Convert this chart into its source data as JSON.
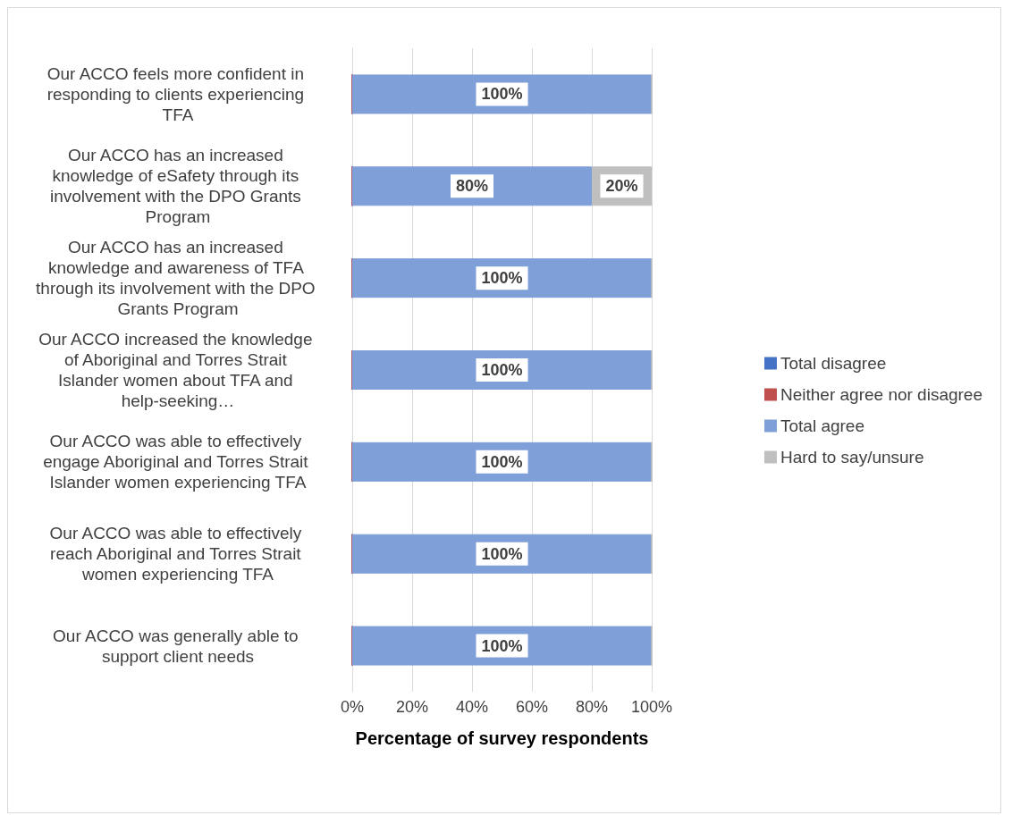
{
  "chart_data": {
    "type": "bar",
    "orientation": "horizontal",
    "stacked": true,
    "xlabel": "Percentage of survey respondents",
    "categories": [
      "Our ACCO feels more confident in responding to clients experiencing TFA",
      "Our ACCO has an increased knowledge of eSafety through its involvement with the DPO Grants Program",
      "Our ACCO has an increased knowledge and awareness of TFA through its involvement with the DPO Grants Program",
      "Our ACCO increased the knowledge of Aboriginal and Torres Strait Islander women about TFA and help-seeking…",
      "Our ACCO was able to effectively engage Aboriginal and Torres Strait Islander women experiencing TFA",
      "Our ACCO was able to effectively reach Aboriginal and Torres Strait women experiencing TFA",
      "Our ACCO was generally able to support client needs"
    ],
    "series": [
      {
        "name": "Total disagree",
        "color": "#4472c4",
        "values": [
          0,
          0,
          0,
          0,
          0,
          0,
          0
        ],
        "value_labels": [
          null,
          null,
          null,
          null,
          null,
          null,
          null
        ]
      },
      {
        "name": "Neither agree nor disagree",
        "color": "#c0504d",
        "values": [
          0,
          0,
          0,
          0,
          0,
          0,
          0
        ],
        "value_labels": [
          null,
          null,
          null,
          null,
          null,
          null,
          null
        ]
      },
      {
        "name": "Total agree",
        "color": "#7f9fd8",
        "values": [
          100,
          80,
          100,
          100,
          100,
          100,
          100
        ],
        "value_labels": [
          "100%",
          "80%",
          "100%",
          "100%",
          "100%",
          "100%",
          "100%"
        ]
      },
      {
        "name": "Hard to say/unsure",
        "color": "#bfbfbf",
        "values": [
          0,
          20,
          0,
          0,
          0,
          0,
          0
        ],
        "value_labels": [
          null,
          "20%",
          null,
          null,
          null,
          null,
          null
        ]
      }
    ],
    "xlim": [
      0,
      100
    ],
    "xticks": [
      {
        "value": 0,
        "label": "0%"
      },
      {
        "value": 20,
        "label": "20%"
      },
      {
        "value": 40,
        "label": "40%"
      },
      {
        "value": 60,
        "label": "60%"
      },
      {
        "value": 80,
        "label": "80%"
      },
      {
        "value": 100,
        "label": "100%"
      }
    ],
    "grid": "x",
    "legend": "right"
  }
}
